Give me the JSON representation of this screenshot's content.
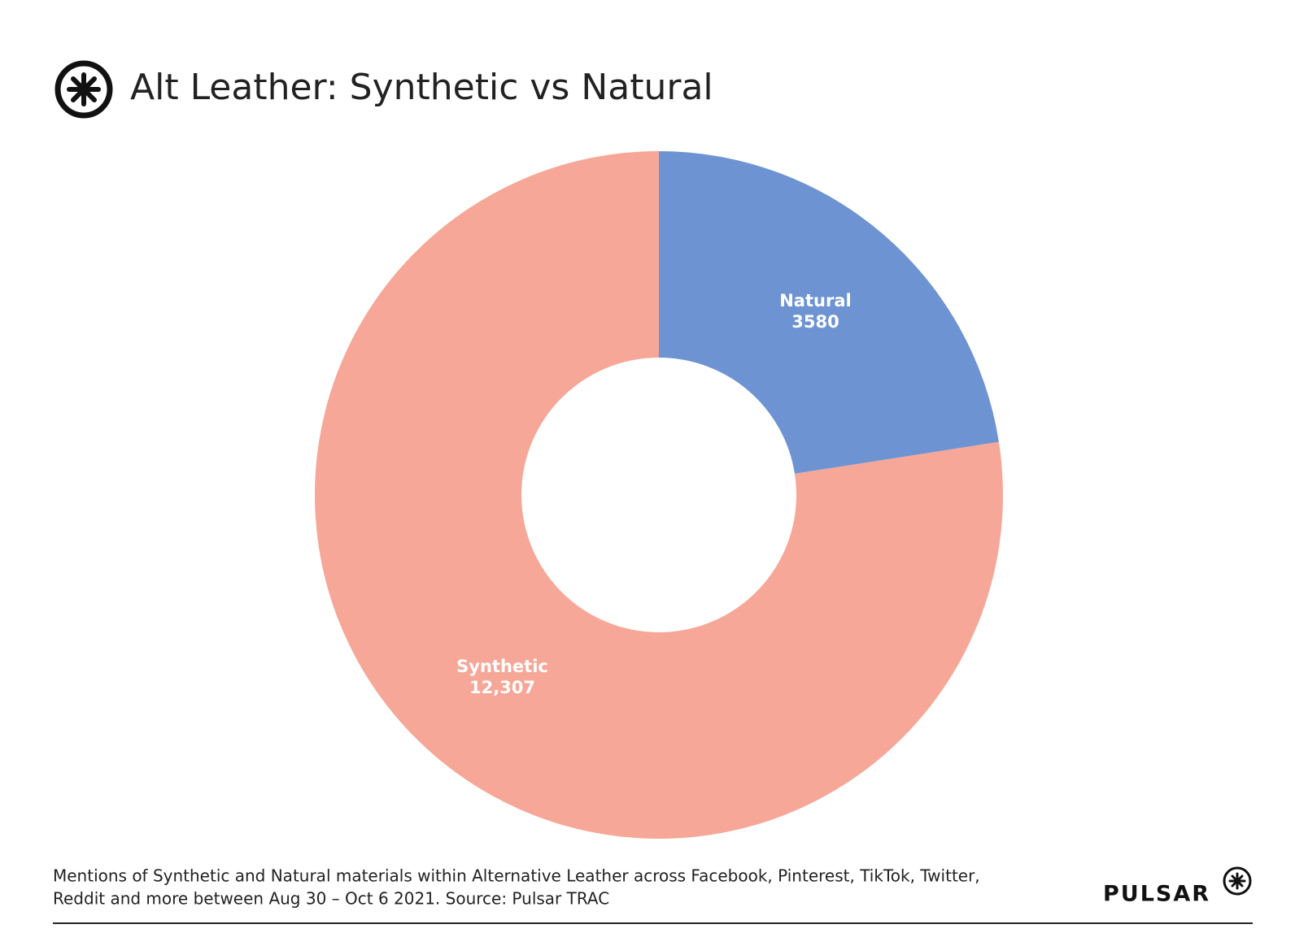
{
  "chart_data": {
    "type": "donut",
    "title": "Alt Leather: Synthetic vs Natural",
    "categories": [
      "Natural",
      "Synthetic"
    ],
    "values": [
      3580,
      12307
    ],
    "value_labels": [
      "3580",
      "12,307"
    ],
    "colors": [
      "#6d93d2",
      "#f6a797"
    ],
    "footnote": [
      "Mentions of Synthetic and Natural materials within Alternative Leather across Facebook, Pinterest, TikTok, Twitter,",
      "Reddit and more between Aug 30 – Oct 6 2021. Source: Pulsar TRAC"
    ],
    "brand": "PULSAR"
  }
}
